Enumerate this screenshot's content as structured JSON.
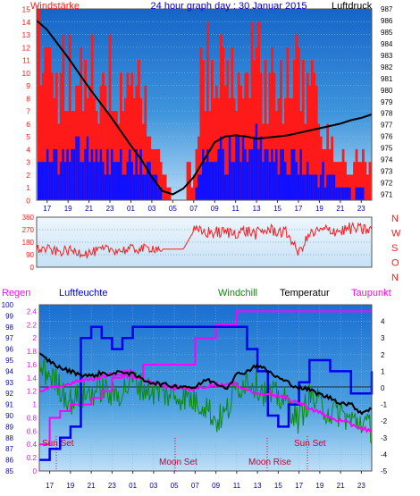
{
  "colors": {
    "wind": "#ff1a1a",
    "windBlue": "#1010ff",
    "pressure": "#000000",
    "dir": "#ff1a1a",
    "humidity": "#0000ee",
    "windchill": "#0a8a0a",
    "temperature": "#000000",
    "dewpoint": "#ff00ff",
    "titleBlue": "#0000cc",
    "tickBlue": "#0000aa",
    "plotTop": "#1a6fd1",
    "plotBottom": "#b9dcf5",
    "dirBg": "#d8ebf8"
  },
  "top_chart": {
    "left_label": "Windstärke",
    "title": "24 hour graph day : 30 Januar 2015",
    "right_label": "Luftdruck",
    "left_ticks": [
      "0",
      "1",
      "2",
      "3",
      "4",
      "5",
      "6",
      "7",
      "8",
      "9",
      "10",
      "11",
      "12",
      "13",
      "14",
      "15"
    ],
    "right_ticks": [
      "971",
      "972",
      "973",
      "974",
      "975",
      "976",
      "977",
      "978",
      "979",
      "980",
      "981",
      "982",
      "983",
      "984",
      "985",
      "986",
      "987"
    ]
  },
  "dir_chart": {
    "left_ticks": [
      "0",
      "90",
      "180",
      "270",
      "360"
    ],
    "compass": [
      "N",
      "W",
      "S",
      "O",
      "N"
    ]
  },
  "bottom_chart": {
    "labels": {
      "regen": "Regen",
      "luftfeuchte": "Luftfeuchte",
      "windchill": "Windchill",
      "temperatur": "Temperatur",
      "taupunkt": "Taupunkt"
    },
    "left_rain_ticks": [
      "0",
      "0.2",
      "0.4",
      "0.6",
      "0.8",
      "1",
      "1.2",
      "1.4",
      "1.6",
      "1.8",
      "2",
      "2.2",
      "2.4"
    ],
    "humidity_ticks": [
      "85",
      "86",
      "87",
      "88",
      "89",
      "90",
      "91",
      "92",
      "93",
      "94",
      "95",
      "96",
      "97",
      "98",
      "99",
      "100"
    ],
    "right_ticks": [
      "-5",
      "-4",
      "-3",
      "-2",
      "-1",
      "0",
      "1",
      "2",
      "3",
      "4"
    ],
    "annotations": {
      "sun_set_left": "Sun Set",
      "moon_set": "Moon Set",
      "moon_rise": "Moon Rise",
      "sun_set_right": "Sun Set"
    }
  },
  "time_ticks": [
    "17",
    "19",
    "21",
    "23",
    "01",
    "03",
    "05",
    "07",
    "09",
    "11",
    "13",
    "15",
    "17",
    "19",
    "21",
    "23"
  ],
  "chart_data": [
    {
      "type": "line",
      "title": "24 hour graph day : 30 Januar 2015",
      "xlabel": "",
      "ylabel": "Windstärke",
      "ylim": [
        0,
        15
      ],
      "y2label": "Luftdruck",
      "y2lim": [
        970.5,
        987
      ],
      "x": [
        "16",
        "17",
        "18",
        "19",
        "20",
        "21",
        "22",
        "23",
        "00",
        "01",
        "02",
        "03",
        "04",
        "05",
        "06",
        "07",
        "08",
        "09",
        "10",
        "11",
        "12",
        "13",
        "14",
        "15",
        "16",
        "17",
        "18",
        "19",
        "20",
        "21",
        "22",
        "23",
        "24"
      ],
      "series": [
        {
          "name": "Luftdruck",
          "values": [
            986.0,
            985.2,
            984.0,
            982.8,
            981.5,
            980.2,
            979.0,
            977.8,
            976.5,
            975.2,
            974.0,
            972.5,
            971.3,
            971.0,
            971.5,
            972.5,
            974.0,
            975.5,
            976.0,
            976.1,
            976.0,
            975.8,
            975.9,
            976.0,
            976.1,
            976.3,
            976.5,
            976.7,
            976.9,
            977.1,
            977.4,
            977.6,
            977.9
          ]
        },
        {
          "name": "Windstärke",
          "values": [
            7,
            6,
            5,
            6,
            6,
            7,
            5,
            6,
            5,
            6,
            5,
            3,
            1,
            0,
            0,
            1,
            6,
            6,
            6,
            6,
            7,
            7,
            6,
            6,
            5,
            5,
            5,
            4,
            3,
            2,
            1,
            1,
            1
          ]
        }
      ]
    },
    {
      "type": "line",
      "xlabel": "",
      "ylabel": "",
      "ylim": [
        0,
        360
      ],
      "x": [
        "16",
        "17",
        "18",
        "19",
        "20",
        "21",
        "22",
        "23",
        "00",
        "01",
        "02",
        "03",
        "04",
        "05",
        "06",
        "07",
        "08",
        "09",
        "10",
        "11",
        "12",
        "13",
        "14",
        "15",
        "16",
        "17",
        "18",
        "19",
        "20",
        "21",
        "22",
        "23",
        "24"
      ],
      "series": [
        {
          "name": "",
          "values": [
            130,
            130,
            110,
            120,
            110,
            100,
            120,
            130,
            120,
            130,
            130,
            140,
            130,
            130,
            130,
            260,
            250,
            250,
            250,
            250,
            260,
            240,
            270,
            260,
            240,
            100,
            230,
            260,
            270,
            260,
            280,
            270,
            270
          ]
        }
      ]
    },
    {
      "type": "line",
      "ylabel": "Luftfeuchte",
      "ylim": [
        85,
        100
      ],
      "y2label": "Temperatur",
      "y2lim": [
        -5,
        5
      ],
      "x": [
        "16",
        "17",
        "18",
        "19",
        "20",
        "21",
        "22",
        "23",
        "00",
        "01",
        "02",
        "03",
        "04",
        "05",
        "06",
        "07",
        "08",
        "09",
        "10",
        "11",
        "12",
        "13",
        "14",
        "15",
        "16",
        "17",
        "18",
        "19",
        "20",
        "21",
        "22",
        "23",
        "24"
      ],
      "series": [
        {
          "name": "Luftfeuchte",
          "values": [
            86,
            87,
            88,
            89,
            97,
            98,
            97,
            96,
            97,
            98,
            98,
            98,
            98,
            98,
            98,
            98,
            98,
            98,
            98,
            98,
            96,
            94,
            90,
            89,
            91,
            93,
            95,
            95,
            94,
            94,
            92,
            92,
            94
          ]
        },
        {
          "name": "Temperatur",
          "values": [
            2.0,
            1.6,
            1.2,
            1.0,
            0.8,
            0.7,
            0.9,
            0.8,
            1.0,
            0.8,
            0.5,
            0.3,
            0.2,
            0.1,
            0.1,
            0.0,
            0.5,
            0.3,
            0.0,
            0.8,
            1.0,
            1.4,
            1.0,
            0.6,
            0.3,
            0.0,
            -0.1,
            -0.4,
            -0.6,
            -0.9,
            -1.0,
            -1.5,
            -1.2
          ]
        },
        {
          "name": "Windchill",
          "values": [
            1.2,
            0.8,
            0.0,
            -0.8,
            -0.5,
            -0.3,
            0.0,
            -0.5,
            -0.2,
            0.5,
            0.0,
            -0.2,
            -0.3,
            -0.5,
            -0.5,
            -0.8,
            -1.0,
            -2.0,
            -1.5,
            0.0,
            0.5,
            0.2,
            -0.5,
            -0.5,
            -1.0,
            -2.0,
            -0.5,
            -1.0,
            -1.5,
            -1.5,
            -2.0,
            -2.0,
            -2.5
          ]
        },
        {
          "name": "Taupunkt",
          "values": [
            -0.2,
            0.0,
            0.0,
            0.3,
            0.5,
            0.5,
            0.7,
            0.8,
            0.8,
            0.6,
            0.5,
            0.3,
            0.1,
            0.0,
            0.0,
            -0.1,
            0.1,
            0.2,
            0.2,
            0.2,
            -0.1,
            -0.4,
            -0.3,
            -0.5,
            -0.7,
            -0.9,
            -1.2,
            -1.5,
            -1.8,
            -2.0,
            -2.2,
            -2.4,
            -2.6
          ]
        },
        {
          "name": "Regen",
          "values": [
            0.4,
            0.8,
            0.9,
            1.0,
            1.0,
            1.1,
            1.2,
            1.4,
            1.5,
            1.4,
            1.6,
            1.6,
            1.6,
            1.6,
            1.6,
            2.0,
            2.0,
            2.2,
            2.2,
            2.4,
            2.4,
            2.4,
            2.4,
            2.4,
            2.4,
            2.4,
            2.4,
            2.4,
            2.4,
            2.4,
            2.4,
            2.4,
            2.4
          ]
        }
      ]
    }
  ]
}
